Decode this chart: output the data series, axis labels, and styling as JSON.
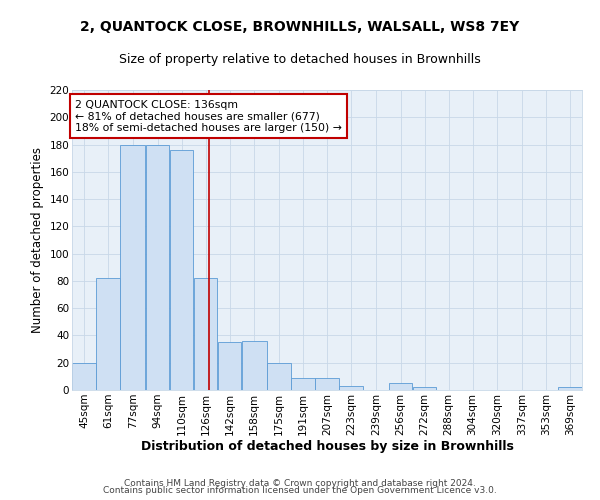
{
  "title": "2, QUANTOCK CLOSE, BROWNHILLS, WALSALL, WS8 7EY",
  "subtitle": "Size of property relative to detached houses in Brownhills",
  "xlabel": "Distribution of detached houses by size in Brownhills",
  "ylabel": "Number of detached properties",
  "bin_labels": [
    "45sqm",
    "61sqm",
    "77sqm",
    "94sqm",
    "110sqm",
    "126sqm",
    "142sqm",
    "158sqm",
    "175sqm",
    "191sqm",
    "207sqm",
    "223sqm",
    "239sqm",
    "256sqm",
    "272sqm",
    "288sqm",
    "304sqm",
    "320sqm",
    "337sqm",
    "353sqm",
    "369sqm"
  ],
  "bin_edges": [
    45,
    61,
    77,
    94,
    110,
    126,
    142,
    158,
    175,
    191,
    207,
    223,
    239,
    256,
    272,
    288,
    304,
    320,
    337,
    353,
    369,
    385
  ],
  "bar_heights": [
    20,
    82,
    180,
    180,
    176,
    82,
    35,
    36,
    20,
    9,
    9,
    3,
    0,
    5,
    2,
    0,
    0,
    0,
    0,
    0,
    2
  ],
  "bar_color": "#cfe0f3",
  "bar_edge_color": "#5b9bd5",
  "vertical_line_x": 136,
  "vertical_line_color": "#c00000",
  "annotation_text": "2 QUANTOCK CLOSE: 136sqm\n← 81% of detached houses are smaller (677)\n18% of semi-detached houses are larger (150) →",
  "annotation_box_color": "white",
  "annotation_box_edge_color": "#c00000",
  "ylim": [
    0,
    220
  ],
  "yticks": [
    0,
    20,
    40,
    60,
    80,
    100,
    120,
    140,
    160,
    180,
    200,
    220
  ],
  "grid_color": "#c8d8e8",
  "background_color": "#e8f0f8",
  "footer_line1": "Contains HM Land Registry data © Crown copyright and database right 2024.",
  "footer_line2": "Contains public sector information licensed under the Open Government Licence v3.0.",
  "title_fontsize": 10,
  "subtitle_fontsize": 9,
  "xlabel_fontsize": 9,
  "ylabel_fontsize": 8.5,
  "tick_fontsize": 7.5,
  "annotation_fontsize": 7.8,
  "footer_fontsize": 6.5
}
